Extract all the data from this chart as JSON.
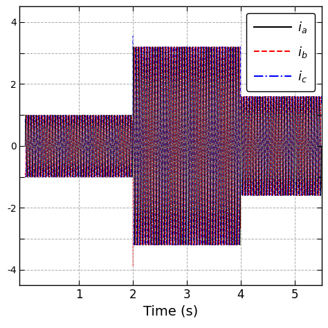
{
  "title": "",
  "xlabel": "Time (s)",
  "ylabel": "",
  "xlim": [
    -0.1,
    5.5
  ],
  "ylim": [
    -4.5,
    4.5
  ],
  "freq_hz": 20,
  "phase_shift_deg": 120,
  "t_transition1": 2.0,
  "t_transition2": 4.0,
  "amp1": 1.0,
  "amp2": 3.2,
  "amp3": 1.6,
  "color_a": "#000000",
  "color_b": "#ff0000",
  "color_c": "#0000ff",
  "legend_ia": "$i_a$",
  "legend_ib": "$i_b$",
  "legend_ic": "$i_c$",
  "xticks": [
    1,
    2,
    3,
    4,
    5
  ],
  "ytick_positions": [
    -4,
    -3,
    -2,
    -1,
    0,
    1,
    2,
    3,
    4
  ],
  "ytick_labels": [
    "-4",
    "",
    "-2",
    "",
    "0",
    "",
    "2",
    "",
    "4"
  ],
  "grid_color": "#aaaaaa",
  "grid_linestyle": "--",
  "bg_color": "#ffffff",
  "figsize": [
    4.74,
    4.74
  ],
  "dpi": 100
}
